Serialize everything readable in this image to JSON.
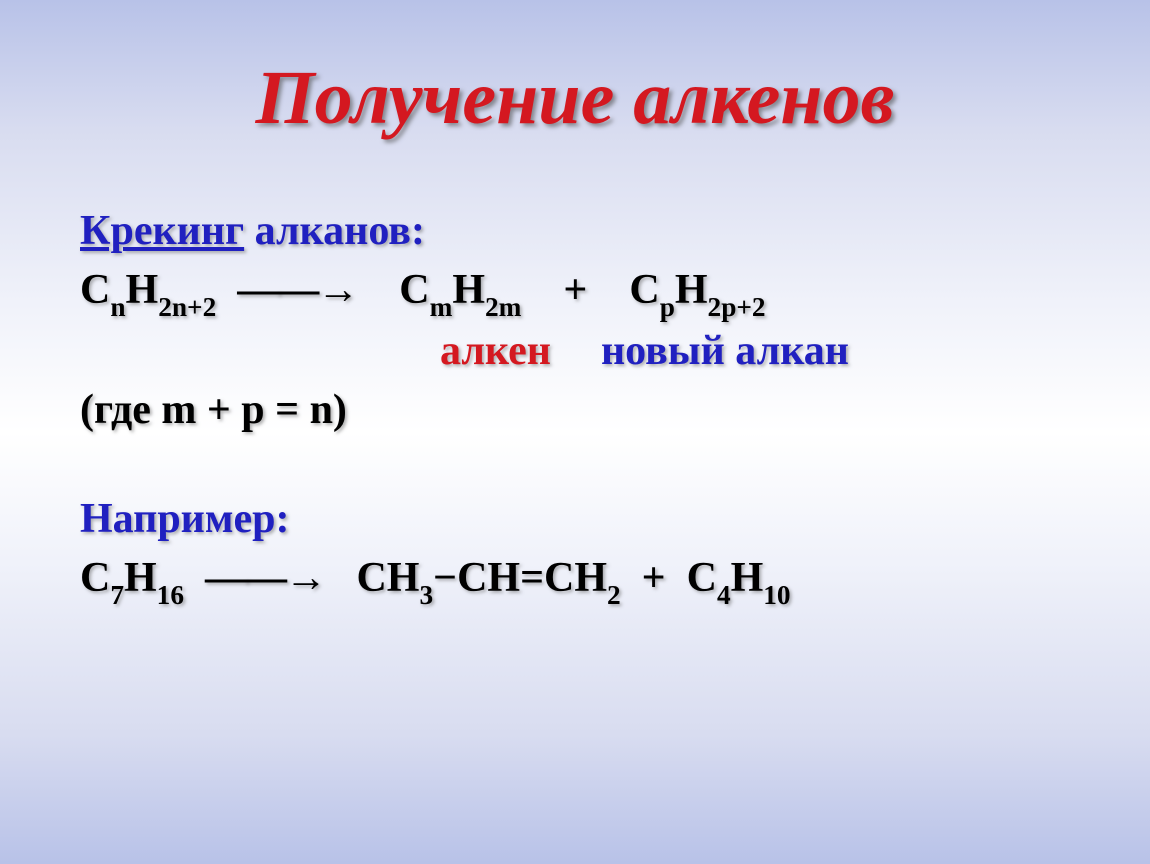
{
  "title": "Получение алкенов",
  "title_color": "#d41820",
  "title_fontsize": 76,
  "content": {
    "subtitle_link": "Крекинг",
    "subtitle_rest": " алканов:",
    "subtitle_color": "#2020c0",
    "subtitle_fontsize": 42,
    "formula": {
      "c1": "C",
      "sub_n": "n",
      "h1": "H",
      "sub_2n2": "2n+2",
      "arrow": "——→",
      "c2": "C",
      "sub_m": "m",
      "h2": "H",
      "sub_2m": "2m",
      "plus": "+",
      "c3": "C",
      "sub_p": "p",
      "h3": "H",
      "sub_2p2": "2p+2",
      "color": "#000000",
      "fontsize": 42
    },
    "labels": {
      "alkene": "алкен",
      "new_alkane": "новый алкан",
      "alkene_color": "#d41820",
      "alkane_color": "#2020c0",
      "fontsize": 42,
      "spacer1_width": 360,
      "spacer2_width": 50
    },
    "condition": {
      "text": "(где m + p = n)",
      "color": "#000000",
      "fontsize": 42
    },
    "example_label": {
      "text": "Например:",
      "color": "#2020c0",
      "fontsize": 42
    },
    "example": {
      "c1": "C",
      "sub_7": "7",
      "h1": "H",
      "sub_16": "16",
      "arrow": "——→",
      "ch3": "CH",
      "sub_3": "3",
      "dash": "−",
      "ch": "CH=CH",
      "sub_2": "2",
      "plus": "+",
      "c4": "C",
      "sub_4": "4",
      "h10": "H",
      "sub_10": "10",
      "color": "#000000",
      "fontsize": 42
    }
  },
  "background": {
    "gradient_top": "#b8c2e8",
    "gradient_mid": "#ffffff",
    "gradient_bottom": "#b8c2e8"
  }
}
